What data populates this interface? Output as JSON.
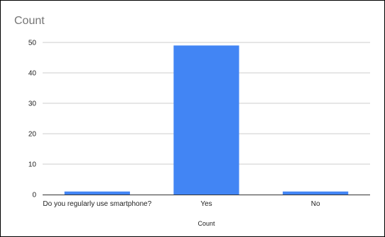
{
  "chart_data": {
    "type": "bar",
    "title": "Count",
    "xlabel": "Count",
    "ylabel": "",
    "categories": [
      "Do you regularly use smartphone?",
      "Yes",
      "No"
    ],
    "series": [
      {
        "values": [
          1,
          49,
          1
        ]
      }
    ],
    "ylim": [
      0,
      50
    ],
    "yticks": [
      0,
      10,
      20,
      30,
      40,
      50
    ],
    "grid": true,
    "legend": "none",
    "colors": {
      "bar": "#4285f4",
      "grid": "#cccccc",
      "axis": "#333333"
    }
  }
}
